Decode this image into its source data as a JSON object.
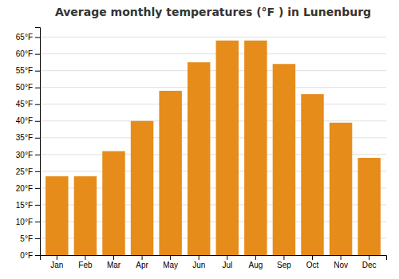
{
  "chart_data": {
    "type": "bar",
    "title": "Average monthly temperatures (°F ) in Lunenburg",
    "categories": [
      "Jan",
      "Feb",
      "Mar",
      "Apr",
      "May",
      "Jun",
      "Jul",
      "Aug",
      "Sep",
      "Oct",
      "Nov",
      "Dec"
    ],
    "values": [
      23.5,
      23.5,
      31.0,
      40.0,
      49.0,
      57.5,
      64.0,
      64.0,
      57.0,
      48.0,
      39.5,
      29.0
    ],
    "color": "#E68C1A",
    "ylim": [
      0,
      68
    ],
    "yticks": [
      {
        "value": 0,
        "label": "0°F"
      },
      {
        "value": 5,
        "label": "5°F"
      },
      {
        "value": 10,
        "label": "10°F"
      },
      {
        "value": 15,
        "label": "15°F"
      },
      {
        "value": 20,
        "label": "20°F"
      },
      {
        "value": 25,
        "label": "25°F"
      },
      {
        "value": 30,
        "label": "30°F"
      },
      {
        "value": 35,
        "label": "35°F"
      },
      {
        "value": 40,
        "label": "40°F"
      },
      {
        "value": 45,
        "label": "45°F"
      },
      {
        "value": 50,
        "label": "50°F"
      },
      {
        "value": 55,
        "label": "55°F"
      },
      {
        "value": 60,
        "label": "60°F"
      },
      {
        "value": 65,
        "label": "65°F"
      }
    ],
    "grid": true
  }
}
